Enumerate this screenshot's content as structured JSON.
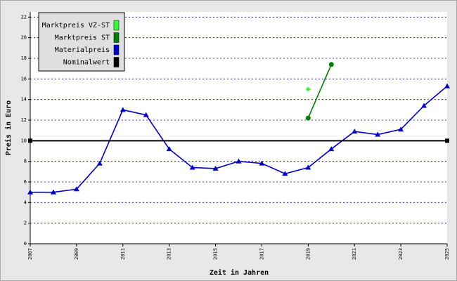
{
  "chart_data": {
    "type": "line",
    "xlabel": "Zeit in Jahren",
    "ylabel": "Preis in Euro",
    "xlim": [
      2007,
      2025
    ],
    "xticks": [
      2007,
      2009,
      2011,
      2013,
      2015,
      2017,
      2019,
      2021,
      2023,
      2025
    ],
    "ylim": [
      0,
      22.5
    ],
    "yticks": [
      0,
      2,
      4,
      6,
      8,
      10,
      12,
      14,
      16,
      18,
      20,
      22
    ],
    "grid": true,
    "legend": "upper left",
    "series": [
      {
        "name": "Marktpreis VZ-ST",
        "color": "#33ff33",
        "marker": "diamond",
        "x": [
          2019
        ],
        "values": [
          15.0
        ]
      },
      {
        "name": "Marktpreis ST",
        "color": "#008000",
        "marker": "circle",
        "x": [
          2019,
          2020
        ],
        "values": [
          12.2,
          17.4
        ]
      },
      {
        "name": "Materialpreis",
        "color": "#0000cc",
        "marker": "triangle",
        "x": [
          2007,
          2008,
          2009,
          2010,
          2011,
          2012,
          2013,
          2014,
          2015,
          2016,
          2017,
          2018,
          2019,
          2020,
          2021,
          2022,
          2023,
          2024,
          2025
        ],
        "values": [
          5.0,
          5.0,
          5.3,
          7.8,
          13.0,
          12.5,
          9.2,
          7.4,
          7.3,
          8.0,
          7.8,
          6.8,
          7.4,
          9.2,
          10.9,
          10.6,
          11.1,
          13.4,
          15.3
        ]
      },
      {
        "name": "Nominalwert",
        "color": "#000000",
        "marker": "square",
        "x": [
          2007,
          2025
        ],
        "values": [
          10,
          10
        ]
      }
    ]
  }
}
